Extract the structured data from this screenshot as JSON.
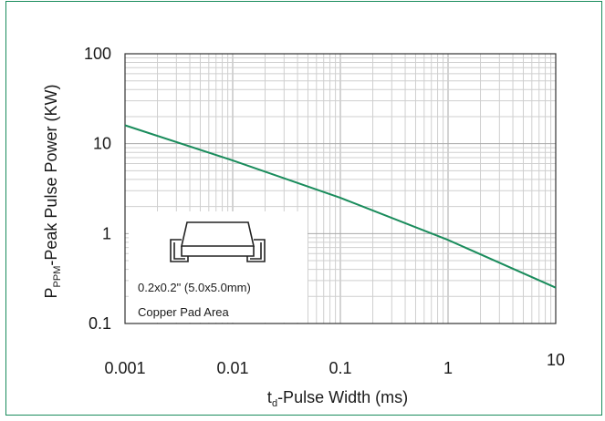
{
  "chart_data": {
    "type": "line",
    "title": "",
    "xlabel": {
      "main": "t",
      "sub": "d",
      "rest": "-Pulse Width (ms)"
    },
    "ylabel": {
      "main": "P",
      "sub": "PPM",
      "rest": "-Peak Pulse Power (KW)"
    },
    "x_scale": "log",
    "y_scale": "log",
    "xlim": [
      0.001,
      10
    ],
    "ylim": [
      0.1,
      100
    ],
    "x_ticks": [
      {
        "value": 0.001,
        "label": "0.001"
      },
      {
        "value": 0.01,
        "label": "0.01"
      },
      {
        "value": 0.1,
        "label": "0.1"
      },
      {
        "value": 1,
        "label": "1"
      },
      {
        "value": 10,
        "label": "10"
      }
    ],
    "y_ticks": [
      {
        "value": 100,
        "label": "100"
      },
      {
        "value": 10,
        "label": "10"
      },
      {
        "value": 1,
        "label": "1"
      },
      {
        "value": 0.1,
        "label": "0.1"
      }
    ],
    "grid": true,
    "series": [
      {
        "color": "#1a8c5c",
        "x": [
          0.001,
          0.01,
          0.1,
          1,
          10
        ],
        "y": [
          16,
          6.5,
          2.5,
          0.85,
          0.25
        ]
      }
    ],
    "inset": {
      "line1": "0.2x0.2\" (5.0x5.0mm)",
      "line2": "Copper Pad Area"
    }
  }
}
